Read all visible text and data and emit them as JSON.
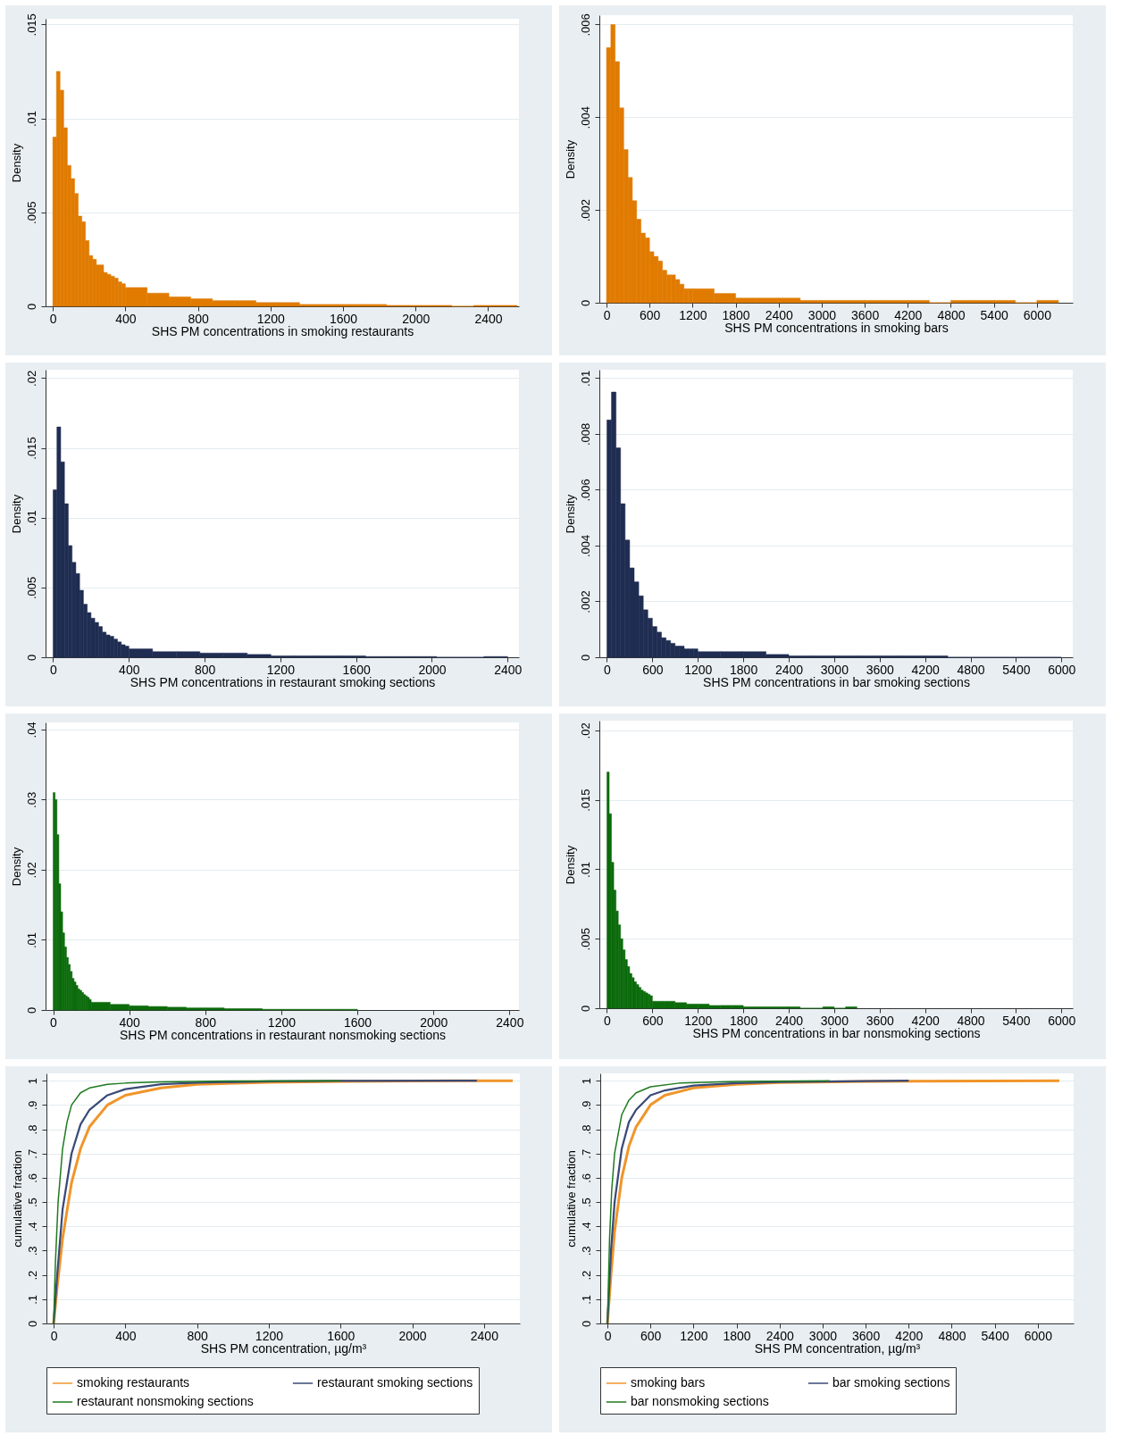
{
  "chart_data": [
    {
      "type": "histogram",
      "xlabel": "SHS PM concentrations in smoking restaurants",
      "ylabel": "Density",
      "color": "#e07b00",
      "grid": "y",
      "xlim": [
        -40,
        2570
      ],
      "xticks": [
        0,
        400,
        800,
        1200,
        1600,
        2000,
        2400
      ],
      "ylim": [
        0,
        0.0153
      ],
      "yticks": [
        {
          "value": 0,
          "label": "0"
        },
        {
          "value": 0.005,
          "label": ".005"
        },
        {
          "value": 0.01,
          "label": ".01"
        },
        {
          "value": 0.015,
          "label": ".015"
        }
      ],
      "bins": [
        0,
        20,
        40,
        60,
        80,
        100,
        120,
        140,
        160,
        180,
        200,
        220,
        240,
        260,
        280,
        300,
        320,
        340,
        360,
        380,
        400,
        520,
        640,
        760,
        880,
        1000,
        1120,
        1240,
        1360,
        1480,
        1600,
        1720,
        1840,
        1960,
        2080,
        2200,
        2320,
        2440,
        2560
      ],
      "values": [
        0.009,
        0.0125,
        0.0115,
        0.0095,
        0.0075,
        0.0068,
        0.006,
        0.0048,
        0.0045,
        0.0035,
        0.0027,
        0.0025,
        0.0022,
        0.0022,
        0.0018,
        0.0017,
        0.0016,
        0.0015,
        0.0013,
        0.0012,
        0.001,
        0.0007,
        0.0005,
        0.0004,
        0.0003,
        0.0003,
        0.0002,
        0.0002,
        0.0001,
        0.0001,
        0.0001,
        0.0001,
        5e-05,
        5e-05,
        5e-05,
        0,
        5e-05,
        5e-05
      ]
    },
    {
      "type": "histogram",
      "xlabel": "SHS PM concentrations in smoking bars",
      "ylabel": "Density",
      "color": "#e07b00",
      "grid": "y",
      "xlim": [
        -100,
        6500
      ],
      "xticks": [
        0,
        600,
        1200,
        1800,
        2400,
        3000,
        3600,
        4200,
        4800,
        5400,
        6000
      ],
      "ylim": [
        0,
        0.0062
      ],
      "yticks": [
        {
          "value": 0,
          "label": "0"
        },
        {
          "value": 0.002,
          "label": ".002"
        },
        {
          "value": 0.004,
          "label": ".004"
        },
        {
          "value": 0.006,
          "label": ".006"
        }
      ],
      "bins": [
        0,
        60,
        120,
        180,
        240,
        300,
        360,
        420,
        480,
        540,
        600,
        660,
        720,
        780,
        840,
        900,
        960,
        1020,
        1080,
        1140,
        1200,
        1500,
        1800,
        2100,
        2400,
        2700,
        3000,
        3300,
        3600,
        3900,
        4200,
        4500,
        4800,
        5100,
        5400,
        5700,
        6000,
        6300
      ],
      "values": [
        0.0055,
        0.006,
        0.0052,
        0.0042,
        0.0033,
        0.0027,
        0.0022,
        0.0018,
        0.0015,
        0.0014,
        0.0011,
        0.001,
        0.0009,
        0.0007,
        0.0006,
        0.0006,
        0.0005,
        0.0004,
        0.0003,
        0.0003,
        0.0003,
        0.0002,
        0.0001,
        0.0001,
        0.0001,
        5e-05,
        5e-05,
        5e-05,
        5e-05,
        5e-05,
        5e-05,
        0,
        5e-05,
        5e-05,
        5e-05,
        0,
        5e-05
      ]
    },
    {
      "type": "histogram",
      "xlabel": "SHS PM concentrations in restaurant smoking sections",
      "ylabel": "Density",
      "color": "#1f2d52",
      "grid": "y",
      "xlim": [
        -40,
        2460
      ],
      "xticks": [
        0,
        400,
        800,
        1200,
        1600,
        2000,
        2400
      ],
      "ylim": [
        0,
        0.0206
      ],
      "yticks": [
        {
          "value": 0,
          "label": "0"
        },
        {
          "value": 0.005,
          "label": ".005"
        },
        {
          "value": 0.01,
          "label": ".01"
        },
        {
          "value": 0.015,
          "label": ".015"
        },
        {
          "value": 0.02,
          "label": ".02"
        }
      ],
      "bins": [
        0,
        20,
        40,
        60,
        80,
        100,
        120,
        140,
        160,
        180,
        200,
        220,
        240,
        260,
        280,
        300,
        320,
        340,
        360,
        380,
        400,
        525,
        650,
        775,
        900,
        1025,
        1150,
        1275,
        1400,
        1525,
        1650,
        1775,
        1900,
        2025,
        2150,
        2275,
        2400
      ],
      "values": [
        0.012,
        0.0165,
        0.014,
        0.011,
        0.008,
        0.0068,
        0.006,
        0.0048,
        0.0038,
        0.0032,
        0.0028,
        0.0025,
        0.0022,
        0.0018,
        0.0016,
        0.0015,
        0.0013,
        0.0011,
        0.0009,
        0.0008,
        0.0006,
        0.0004,
        0.0004,
        0.0003,
        0.0003,
        0.0002,
        0.0001,
        0.0001,
        0.0001,
        0.0001,
        5e-05,
        5e-05,
        5e-05,
        0,
        0,
        5e-05
      ]
    },
    {
      "type": "histogram",
      "xlabel": "SHS PM concentrations in bar smoking sections",
      "ylabel": "Density",
      "color": "#1f2d52",
      "grid": "y",
      "xlim": [
        -100,
        6150
      ],
      "xticks": [
        0,
        600,
        1200,
        1800,
        2400,
        3000,
        3600,
        4200,
        4800,
        5400,
        6000
      ],
      "ylim": [
        0,
        0.0103
      ],
      "yticks": [
        {
          "value": 0,
          "label": "0"
        },
        {
          "value": 0.002,
          "label": ".002"
        },
        {
          "value": 0.004,
          "label": ".004"
        },
        {
          "value": 0.006,
          "label": ".006"
        },
        {
          "value": 0.008,
          "label": ".008"
        },
        {
          "value": 0.01,
          "label": ".01"
        }
      ],
      "bins": [
        0,
        60,
        120,
        180,
        240,
        300,
        360,
        420,
        480,
        540,
        600,
        660,
        720,
        780,
        840,
        900,
        960,
        1020,
        1080,
        1140,
        1200,
        1500,
        1800,
        2100,
        2400,
        2700,
        3000,
        3300,
        3600,
        3900,
        4200,
        4500,
        4800,
        5100,
        5400,
        5700,
        6000
      ],
      "values": [
        0.0085,
        0.0095,
        0.0075,
        0.0055,
        0.0042,
        0.0032,
        0.0027,
        0.0022,
        0.0017,
        0.0014,
        0.0011,
        0.0009,
        0.0007,
        0.0006,
        0.0005,
        0.0004,
        0.0004,
        0.0003,
        0.0003,
        0.0003,
        0.0002,
        0.0002,
        0.0002,
        0.0001,
        5e-05,
        5e-05,
        5e-05,
        5e-05,
        5e-05,
        5e-05,
        5e-05,
        0,
        0,
        0,
        0,
        0
      ]
    },
    {
      "type": "histogram",
      "xlabel": "SHS PM concentrations in restaurant nonsmoking sections",
      "ylabel": "Density",
      "color": "#0b6b0b",
      "grid": "y",
      "xlim": [
        -40,
        2450
      ],
      "xticks": [
        0,
        400,
        800,
        1200,
        1600,
        2000,
        2400
      ],
      "ylim": [
        0,
        0.041
      ],
      "yticks": [
        {
          "value": 0,
          "label": "0"
        },
        {
          "value": 0.01,
          "label": ".01"
        },
        {
          "value": 0.02,
          "label": ".02"
        },
        {
          "value": 0.03,
          "label": ".03"
        },
        {
          "value": 0.04,
          "label": ".04"
        }
      ],
      "bins": [
        0,
        10,
        20,
        30,
        40,
        50,
        60,
        70,
        80,
        90,
        100,
        110,
        120,
        130,
        140,
        150,
        160,
        170,
        180,
        190,
        200,
        300,
        400,
        500,
        600,
        700,
        800,
        900,
        1000,
        1100,
        1200,
        1300,
        1400,
        1500,
        1600
      ],
      "values": [
        0.031,
        0.03,
        0.025,
        0.018,
        0.014,
        0.011,
        0.009,
        0.0075,
        0.0065,
        0.0055,
        0.0045,
        0.004,
        0.0035,
        0.003,
        0.0028,
        0.0025,
        0.0022,
        0.002,
        0.0018,
        0.0015,
        0.0011,
        0.0008,
        0.0006,
        0.0005,
        0.0004,
        0.0003,
        0.0003,
        0.0002,
        0.0002,
        0.0001,
        0.0001,
        0.0001,
        0.0001,
        0.0001
      ]
    },
    {
      "type": "histogram",
      "xlabel": "SHS PM concentrations in bar nonsmoking sections",
      "ylabel": "Density",
      "color": "#0b6b0b",
      "grid": "y",
      "xlim": [
        -100,
        6150
      ],
      "xticks": [
        0,
        600,
        1200,
        1800,
        2400,
        3000,
        3600,
        4200,
        4800,
        5400,
        6000
      ],
      "ylim": [
        0,
        0.0207
      ],
      "yticks": [
        {
          "value": 0,
          "label": "0"
        },
        {
          "value": 0.005,
          "label": ".005"
        },
        {
          "value": 0.01,
          "label": ".01"
        },
        {
          "value": 0.015,
          "label": ".015"
        },
        {
          "value": 0.02,
          "label": ".02"
        }
      ],
      "bins": [
        0,
        30,
        60,
        90,
        120,
        150,
        180,
        210,
        240,
        270,
        300,
        330,
        360,
        390,
        420,
        450,
        480,
        510,
        540,
        570,
        600,
        750,
        900,
        1050,
        1200,
        1350,
        1500,
        1650,
        1800,
        1950,
        2100,
        2250,
        2400,
        2550,
        2700,
        2850,
        3000,
        3150,
        3300
      ],
      "values": [
        0.017,
        0.014,
        0.0105,
        0.0085,
        0.007,
        0.006,
        0.005,
        0.0042,
        0.0035,
        0.003,
        0.0025,
        0.0022,
        0.0019,
        0.0017,
        0.0015,
        0.0013,
        0.0012,
        0.0011,
        0.001,
        0.0009,
        0.0005,
        0.0005,
        0.0004,
        0.0003,
        0.0003,
        0.0002,
        0.0002,
        0.0002,
        0.0001,
        0.0001,
        0.0001,
        0.0001,
        0.0001,
        0,
        0,
        0.0001,
        0,
        0.0001
      ]
    },
    {
      "type": "line",
      "xlabel": "SHS PM concentration, µg/m³",
      "ylabel": "cumulative fraction",
      "grid": "y",
      "legend": "bottom",
      "xlim": [
        -40,
        2600
      ],
      "xticks": [
        0,
        400,
        800,
        1200,
        1600,
        2000,
        2400
      ],
      "ylim": [
        0,
        1.03
      ],
      "yticks": [
        {
          "value": 0,
          "label": "0"
        },
        {
          "value": 0.1,
          "label": ".1"
        },
        {
          "value": 0.2,
          "label": ".2"
        },
        {
          "value": 0.3,
          "label": ".3"
        },
        {
          "value": 0.4,
          "label": ".4"
        },
        {
          "value": 0.5,
          "label": ".5"
        },
        {
          "value": 0.6,
          "label": ".6"
        },
        {
          "value": 0.7,
          "label": ".7"
        },
        {
          "value": 0.8,
          "label": ".8"
        },
        {
          "value": 0.9,
          "label": ".9"
        },
        {
          "value": 1,
          "label": "1"
        }
      ],
      "series": [
        {
          "name": "smoking restaurants",
          "color": "#f0952a",
          "x": [
            0,
            20,
            50,
            100,
            150,
            200,
            300,
            400,
            600,
            800,
            1200,
            1600,
            2000,
            2560
          ],
          "values": [
            0,
            0.15,
            0.35,
            0.58,
            0.72,
            0.81,
            0.9,
            0.94,
            0.97,
            0.985,
            0.993,
            0.997,
            0.999,
            1
          ]
        },
        {
          "name": "restaurant smoking sections",
          "color": "#3a4a78",
          "x": [
            0,
            20,
            50,
            100,
            150,
            200,
            300,
            400,
            600,
            800,
            1200,
            1600,
            2360
          ],
          "values": [
            0,
            0.2,
            0.47,
            0.7,
            0.82,
            0.88,
            0.94,
            0.965,
            0.985,
            0.992,
            0.997,
            0.999,
            1
          ]
        },
        {
          "name": "restaurant nonsmoking sections",
          "color": "#1e7a1e",
          "x": [
            0,
            10,
            25,
            50,
            75,
            100,
            150,
            200,
            300,
            400,
            600,
            1000,
            1600
          ],
          "values": [
            0,
            0.25,
            0.5,
            0.72,
            0.83,
            0.9,
            0.95,
            0.97,
            0.985,
            0.99,
            0.995,
            0.999,
            1
          ]
        }
      ]
    },
    {
      "type": "line",
      "xlabel": "SHS PM concentration, µg/m³",
      "ylabel": "cumulative fraction",
      "grid": "y",
      "legend": "bottom",
      "xlim": [
        -100,
        6500
      ],
      "xticks": [
        0,
        600,
        1200,
        1800,
        2400,
        3000,
        3600,
        4200,
        4800,
        5400,
        6000
      ],
      "ylim": [
        0,
        1.03
      ],
      "yticks": [
        {
          "value": 0,
          "label": "0"
        },
        {
          "value": 0.1,
          "label": ".1"
        },
        {
          "value": 0.2,
          "label": ".2"
        },
        {
          "value": 0.3,
          "label": ".3"
        },
        {
          "value": 0.4,
          "label": ".4"
        },
        {
          "value": 0.5,
          "label": ".5"
        },
        {
          "value": 0.6,
          "label": ".6"
        },
        {
          "value": 0.7,
          "label": ".7"
        },
        {
          "value": 0.8,
          "label": ".8"
        },
        {
          "value": 0.9,
          "label": ".9"
        },
        {
          "value": 1,
          "label": "1"
        }
      ],
      "series": [
        {
          "name": "smoking bars",
          "color": "#f0952a",
          "x": [
            0,
            50,
            100,
            200,
            300,
            400,
            600,
            800,
            1200,
            1800,
            2400,
            3600,
            6300
          ],
          "values": [
            0,
            0.2,
            0.38,
            0.6,
            0.73,
            0.81,
            0.9,
            0.94,
            0.97,
            0.985,
            0.992,
            0.997,
            1
          ]
        },
        {
          "name": "bar smoking sections",
          "color": "#3a4a78",
          "x": [
            0,
            50,
            100,
            200,
            300,
            400,
            600,
            800,
            1200,
            1800,
            2400,
            4200
          ],
          "values": [
            0,
            0.3,
            0.5,
            0.72,
            0.83,
            0.88,
            0.94,
            0.96,
            0.98,
            0.99,
            0.995,
            1
          ]
        },
        {
          "name": "bar nonsmoking sections",
          "color": "#1e7a1e",
          "x": [
            0,
            30,
            60,
            100,
            200,
            300,
            400,
            600,
            1000,
            1800,
            3100
          ],
          "values": [
            0,
            0.35,
            0.55,
            0.7,
            0.86,
            0.92,
            0.95,
            0.975,
            0.99,
            0.997,
            1
          ]
        }
      ]
    }
  ]
}
